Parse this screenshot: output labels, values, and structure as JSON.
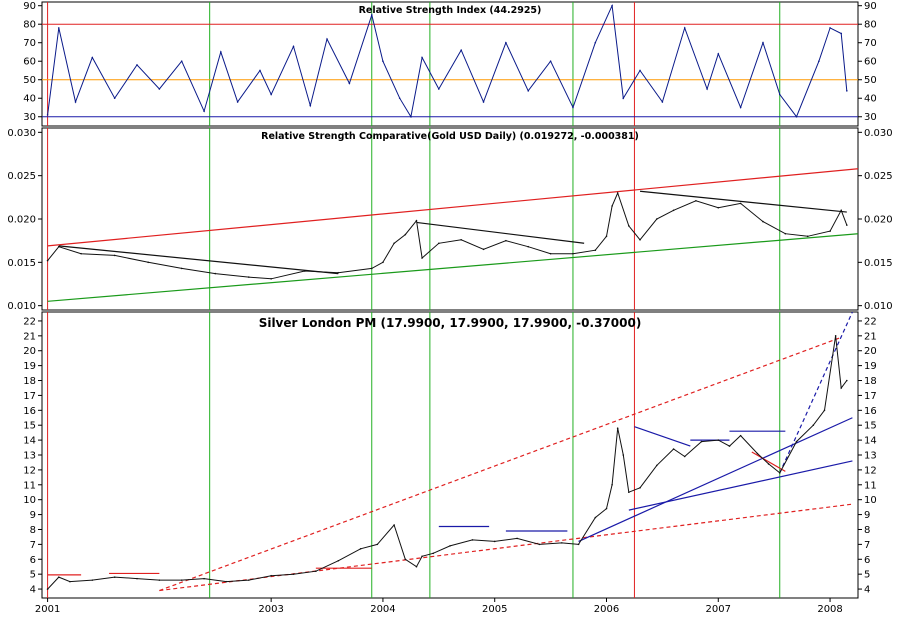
{
  "chart_data": [
    {
      "type": "line",
      "panel": "rsi",
      "title": "Relative Strength Index (44.2925)",
      "ylim": [
        25,
        92
      ],
      "yticks": [
        30,
        40,
        50,
        60,
        70,
        80,
        90
      ],
      "reference_lines": [
        {
          "y": 80,
          "color": "#e02020"
        },
        {
          "y": 50,
          "color": "#ff9900"
        },
        {
          "y": 30,
          "color": "#1a1aa8"
        }
      ],
      "series": [
        {
          "color": "#0a1a8a",
          "x": [
            2001.0,
            2001.1,
            2001.25,
            2001.4,
            2001.6,
            2001.8,
            2002.0,
            2002.2,
            2002.4,
            2002.55,
            2002.7,
            2002.9,
            2003.0,
            2003.2,
            2003.35,
            2003.5,
            2003.7,
            2003.9,
            2004.0,
            2004.15,
            2004.25,
            2004.35,
            2004.5,
            2004.7,
            2004.9,
            2005.1,
            2005.3,
            2005.5,
            2005.7,
            2005.9,
            2006.05,
            2006.15,
            2006.3,
            2006.5,
            2006.7,
            2006.9,
            2007.0,
            2007.2,
            2007.4,
            2007.55,
            2007.7,
            2007.9,
            2008.0,
            2008.1,
            2008.15
          ],
          "values": [
            31,
            78,
            38,
            62,
            40,
            58,
            45,
            60,
            33,
            65,
            38,
            55,
            42,
            68,
            36,
            72,
            48,
            85,
            60,
            40,
            30,
            62,
            45,
            66,
            38,
            70,
            44,
            60,
            35,
            70,
            90,
            40,
            55,
            38,
            78,
            45,
            64,
            35,
            70,
            42,
            30,
            60,
            78,
            75,
            44
          ]
        }
      ]
    },
    {
      "type": "line",
      "panel": "rsc",
      "title": "Relative Strength Comparative(Gold USD Daily) (0.019272, -0.000381)",
      "ylim": [
        0.0095,
        0.0305
      ],
      "yticks": [
        0.01,
        0.015,
        0.02,
        0.025,
        0.03
      ],
      "ytick_labels": [
        "0.010",
        "0.015",
        "0.020",
        "0.025",
        "0.030"
      ],
      "trendlines": [
        {
          "x": [
            2001.0,
            2008.25
          ],
          "y": [
            0.0169,
            0.0258
          ],
          "color": "#e02020"
        },
        {
          "x": [
            2001.0,
            2008.25
          ],
          "y": [
            0.0105,
            0.0183
          ],
          "color": "#1a9a1a"
        },
        {
          "x": [
            2001.1,
            2003.6
          ],
          "y": [
            0.0169,
            0.0137
          ],
          "color": "#111111"
        },
        {
          "x": [
            2004.3,
            2005.8
          ],
          "y": [
            0.0196,
            0.0172
          ],
          "color": "#111111"
        },
        {
          "x": [
            2006.3,
            2008.15
          ],
          "y": [
            0.0232,
            0.0208
          ],
          "color": "#111111"
        }
      ],
      "series": [
        {
          "color": "#111111",
          "x": [
            2001.0,
            2001.1,
            2001.3,
            2001.6,
            2001.9,
            2002.2,
            2002.5,
            2002.8,
            2003.0,
            2003.3,
            2003.6,
            2003.9,
            2004.0,
            2004.1,
            2004.2,
            2004.3,
            2004.35,
            2004.5,
            2004.7,
            2004.9,
            2005.1,
            2005.3,
            2005.5,
            2005.7,
            2005.9,
            2006.0,
            2006.05,
            2006.1,
            2006.2,
            2006.3,
            2006.45,
            2006.6,
            2006.8,
            2007.0,
            2007.2,
            2007.4,
            2007.6,
            2007.8,
            2008.0,
            2008.1,
            2008.15
          ],
          "values": [
            0.0152,
            0.0168,
            0.016,
            0.0158,
            0.015,
            0.0143,
            0.0137,
            0.0133,
            0.0131,
            0.014,
            0.0138,
            0.0143,
            0.015,
            0.0172,
            0.0182,
            0.0198,
            0.0155,
            0.0172,
            0.0176,
            0.0165,
            0.0175,
            0.0168,
            0.016,
            0.016,
            0.0164,
            0.018,
            0.0215,
            0.023,
            0.0192,
            0.0176,
            0.02,
            0.021,
            0.0221,
            0.0213,
            0.0218,
            0.0197,
            0.0183,
            0.018,
            0.0186,
            0.021,
            0.0193
          ]
        }
      ]
    },
    {
      "type": "line",
      "panel": "silver",
      "title": "Silver London PM (17.9900, 17.9900, 17.9900, -0.37000)",
      "ylim": [
        3.4,
        22.6
      ],
      "yticks": [
        4,
        5,
        6,
        7,
        8,
        9,
        10,
        11,
        12,
        13,
        14,
        15,
        16,
        17,
        18,
        19,
        20,
        21,
        22
      ],
      "xtick_labels": [
        "2001",
        "2003",
        "2004",
        "2005",
        "2006",
        "2007",
        "2008"
      ],
      "xtick_values": [
        2001.0,
        2003.0,
        2004.0,
        2005.0,
        2006.0,
        2007.0,
        2008.0
      ],
      "trendlines": [
        {
          "x": [
            2002.0,
            2008.1
          ],
          "y": [
            3.9,
            20.9
          ],
          "color": "#e02020",
          "dash": true
        },
        {
          "x": [
            2002.0,
            2008.2
          ],
          "y": [
            3.9,
            9.7
          ],
          "color": "#e02020",
          "dash": true
        },
        {
          "x": [
            2001.0,
            2001.3
          ],
          "y": [
            4.95,
            4.95
          ],
          "color": "#e02020"
        },
        {
          "x": [
            2001.55,
            2002.0
          ],
          "y": [
            5.05,
            5.05
          ],
          "color": "#e02020"
        },
        {
          "x": [
            2003.4,
            2003.9
          ],
          "y": [
            5.4,
            5.4
          ],
          "color": "#e02020"
        },
        {
          "x": [
            2004.5,
            2004.95
          ],
          "y": [
            8.2,
            8.2
          ],
          "color": "#1a1aa8"
        },
        {
          "x": [
            2005.1,
            2005.65
          ],
          "y": [
            7.9,
            7.9
          ],
          "color": "#1a1aa8"
        },
        {
          "x": [
            2006.25,
            2006.75
          ],
          "y": [
            14.9,
            13.6
          ],
          "color": "#1a1aa8"
        },
        {
          "x": [
            2006.75,
            2007.1
          ],
          "y": [
            14.0,
            14.0
          ],
          "color": "#1a1aa8"
        },
        {
          "x": [
            2007.1,
            2007.6
          ],
          "y": [
            14.6,
            14.6
          ],
          "color": "#1a1aa8"
        },
        {
          "x": [
            2005.75,
            2008.2
          ],
          "y": [
            7.2,
            15.5
          ],
          "color": "#1a1aa8"
        },
        {
          "x": [
            2006.2,
            2008.2
          ],
          "y": [
            9.3,
            12.6
          ],
          "color": "#1a1aa8"
        },
        {
          "x": [
            2007.55,
            2008.2
          ],
          "y": [
            11.8,
            22.6
          ],
          "color": "#1a1aa8",
          "dash": true
        },
        {
          "x": [
            2007.3,
            2007.6
          ],
          "y": [
            13.2,
            11.9
          ],
          "color": "#e02020"
        }
      ],
      "series": [
        {
          "color": "#111111",
          "x": [
            2001.0,
            2001.1,
            2001.2,
            2001.4,
            2001.6,
            2001.8,
            2002.0,
            2002.2,
            2002.4,
            2002.6,
            2002.8,
            2003.0,
            2003.2,
            2003.4,
            2003.6,
            2003.8,
            2003.95,
            2004.1,
            2004.2,
            2004.3,
            2004.35,
            2004.45,
            2004.6,
            2004.8,
            2005.0,
            2005.2,
            2005.4,
            2005.6,
            2005.75,
            2005.9,
            2006.0,
            2006.05,
            2006.1,
            2006.15,
            2006.2,
            2006.3,
            2006.45,
            2006.6,
            2006.7,
            2006.85,
            2007.0,
            2007.1,
            2007.2,
            2007.35,
            2007.45,
            2007.55,
            2007.7,
            2007.85,
            2007.95,
            2008.05,
            2008.1,
            2008.15
          ],
          "values": [
            4.0,
            4.8,
            4.5,
            4.6,
            4.8,
            4.7,
            4.6,
            4.6,
            4.7,
            4.5,
            4.6,
            4.9,
            5.0,
            5.2,
            5.9,
            6.7,
            7.0,
            8.3,
            6.0,
            5.5,
            6.2,
            6.4,
            6.9,
            7.3,
            7.2,
            7.4,
            7.0,
            7.1,
            7.0,
            8.8,
            9.4,
            11.0,
            14.8,
            13.0,
            10.5,
            10.8,
            12.3,
            13.4,
            12.9,
            13.9,
            14.0,
            13.6,
            14.3,
            13.1,
            12.4,
            11.8,
            13.9,
            15.0,
            16.0,
            21.0,
            17.5,
            18.0
          ]
        }
      ]
    }
  ]
}
